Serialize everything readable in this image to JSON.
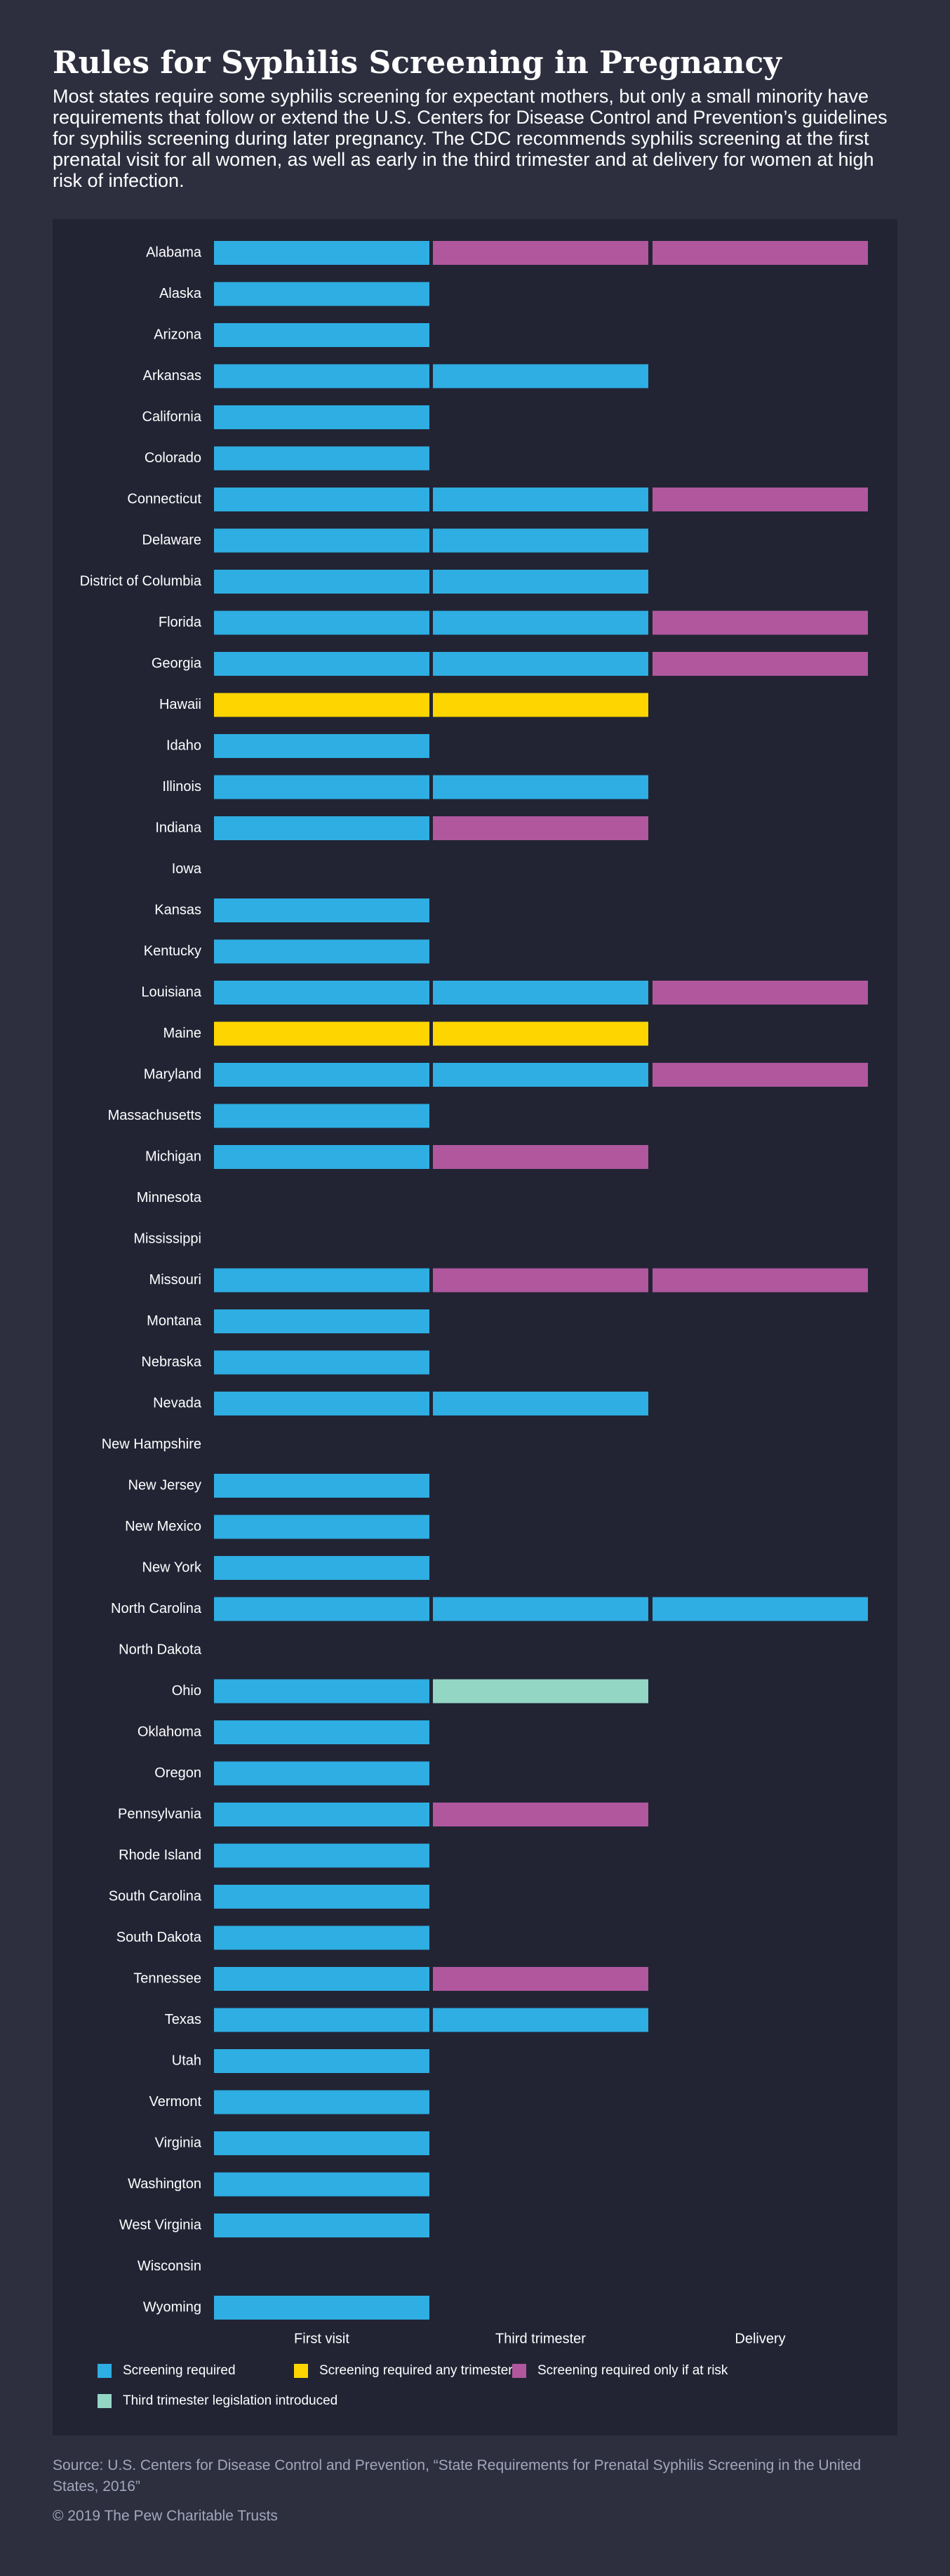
{
  "title": "Rules for Syphilis Screening in Pregnancy",
  "subtitle": "Most states require some syphilis screening for expectant mothers, but only a small minority have requirements that follow or extend the U.S. Centers for Disease Control and Prevention’s guidelines for syphilis screening during later pregnancy. The CDC recommends syphilis screening at the first prenatal visit for all women, as well as early in the third trimester and at delivery for women at high risk of infection.",
  "source": "Source:  U.S. Centers for Disease Control and Prevention, “State Requirements for Prenatal Syphilis Screening in the United States, 2016”",
  "copyright": "© 2019 The Pew Charitable Trusts",
  "colors": {
    "required": "#2eaee2",
    "any_trimester": "#ffd500",
    "if_at_risk": "#b0579e",
    "legislation": "#93d6c4",
    "background": "#2d2f3f",
    "panel": "#222434"
  },
  "legend": [
    {
      "key": "required",
      "label": "Screening required"
    },
    {
      "key": "any_trimester",
      "label": "Screening required any trimester"
    },
    {
      "key": "if_at_risk",
      "label": "Screening required only if at risk"
    },
    {
      "key": "legislation",
      "label": "Third trimester legislation introduced"
    }
  ],
  "chart_data": {
    "type": "table",
    "columns": [
      "First visit",
      "Third trimester",
      "Delivery"
    ],
    "rows": [
      {
        "state": "Alabama",
        "cells": [
          "required",
          "if_at_risk",
          "if_at_risk"
        ]
      },
      {
        "state": "Alaska",
        "cells": [
          "required",
          null,
          null
        ]
      },
      {
        "state": "Arizona",
        "cells": [
          "required",
          null,
          null
        ]
      },
      {
        "state": "Arkansas",
        "cells": [
          "required",
          "required",
          null
        ]
      },
      {
        "state": "California",
        "cells": [
          "required",
          null,
          null
        ]
      },
      {
        "state": "Colorado",
        "cells": [
          "required",
          null,
          null
        ]
      },
      {
        "state": "Connecticut",
        "cells": [
          "required",
          "required",
          "if_at_risk"
        ]
      },
      {
        "state": "Delaware",
        "cells": [
          "required",
          "required",
          null
        ]
      },
      {
        "state": "District of Columbia",
        "cells": [
          "required",
          "required",
          null
        ]
      },
      {
        "state": "Florida",
        "cells": [
          "required",
          "required",
          "if_at_risk"
        ]
      },
      {
        "state": "Georgia",
        "cells": [
          "required",
          "required",
          "if_at_risk"
        ]
      },
      {
        "state": "Hawaii",
        "cells": [
          "any_trimester",
          "any_trimester",
          null
        ]
      },
      {
        "state": "Idaho",
        "cells": [
          "required",
          null,
          null
        ]
      },
      {
        "state": "Illinois",
        "cells": [
          "required",
          "required",
          null
        ]
      },
      {
        "state": "Indiana",
        "cells": [
          "required",
          "if_at_risk",
          null
        ]
      },
      {
        "state": "Iowa",
        "cells": [
          null,
          null,
          null
        ]
      },
      {
        "state": "Kansas",
        "cells": [
          "required",
          null,
          null
        ]
      },
      {
        "state": "Kentucky",
        "cells": [
          "required",
          null,
          null
        ]
      },
      {
        "state": "Louisiana",
        "cells": [
          "required",
          "required",
          "if_at_risk"
        ]
      },
      {
        "state": "Maine",
        "cells": [
          "any_trimester",
          "any_trimester",
          null
        ]
      },
      {
        "state": "Maryland",
        "cells": [
          "required",
          "required",
          "if_at_risk"
        ]
      },
      {
        "state": "Massachusetts",
        "cells": [
          "required",
          null,
          null
        ]
      },
      {
        "state": "Michigan",
        "cells": [
          "required",
          "if_at_risk",
          null
        ]
      },
      {
        "state": "Minnesota",
        "cells": [
          null,
          null,
          null
        ]
      },
      {
        "state": "Mississippi",
        "cells": [
          null,
          null,
          null
        ]
      },
      {
        "state": "Missouri",
        "cells": [
          "required",
          "if_at_risk",
          "if_at_risk"
        ]
      },
      {
        "state": "Montana",
        "cells": [
          "required",
          null,
          null
        ]
      },
      {
        "state": "Nebraska",
        "cells": [
          "required",
          null,
          null
        ]
      },
      {
        "state": "Nevada",
        "cells": [
          "required",
          "required",
          null
        ]
      },
      {
        "state": "New Hampshire",
        "cells": [
          null,
          null,
          null
        ]
      },
      {
        "state": "New Jersey",
        "cells": [
          "required",
          null,
          null
        ]
      },
      {
        "state": "New Mexico",
        "cells": [
          "required",
          null,
          null
        ]
      },
      {
        "state": "New York",
        "cells": [
          "required",
          null,
          null
        ]
      },
      {
        "state": "North Carolina",
        "cells": [
          "required",
          "required",
          "required"
        ]
      },
      {
        "state": "North Dakota",
        "cells": [
          null,
          null,
          null
        ]
      },
      {
        "state": "Ohio",
        "cells": [
          "required",
          "legislation",
          null
        ]
      },
      {
        "state": "Oklahoma",
        "cells": [
          "required",
          null,
          null
        ]
      },
      {
        "state": "Oregon",
        "cells": [
          "required",
          null,
          null
        ]
      },
      {
        "state": "Pennsylvania",
        "cells": [
          "required",
          "if_at_risk",
          null
        ]
      },
      {
        "state": "Rhode Island",
        "cells": [
          "required",
          null,
          null
        ]
      },
      {
        "state": "South Carolina",
        "cells": [
          "required",
          null,
          null
        ]
      },
      {
        "state": "South Dakota",
        "cells": [
          "required",
          null,
          null
        ]
      },
      {
        "state": "Tennessee",
        "cells": [
          "required",
          "if_at_risk",
          null
        ]
      },
      {
        "state": "Texas",
        "cells": [
          "required",
          "required",
          null
        ]
      },
      {
        "state": "Utah",
        "cells": [
          "required",
          null,
          null
        ]
      },
      {
        "state": "Vermont",
        "cells": [
          "required",
          null,
          null
        ]
      },
      {
        "state": "Virginia",
        "cells": [
          "required",
          null,
          null
        ]
      },
      {
        "state": "Washington",
        "cells": [
          "required",
          null,
          null
        ]
      },
      {
        "state": "West Virginia",
        "cells": [
          "required",
          null,
          null
        ]
      },
      {
        "state": "Wisconsin",
        "cells": [
          null,
          null,
          null
        ]
      },
      {
        "state": "Wyoming",
        "cells": [
          "required",
          null,
          null
        ]
      }
    ]
  }
}
